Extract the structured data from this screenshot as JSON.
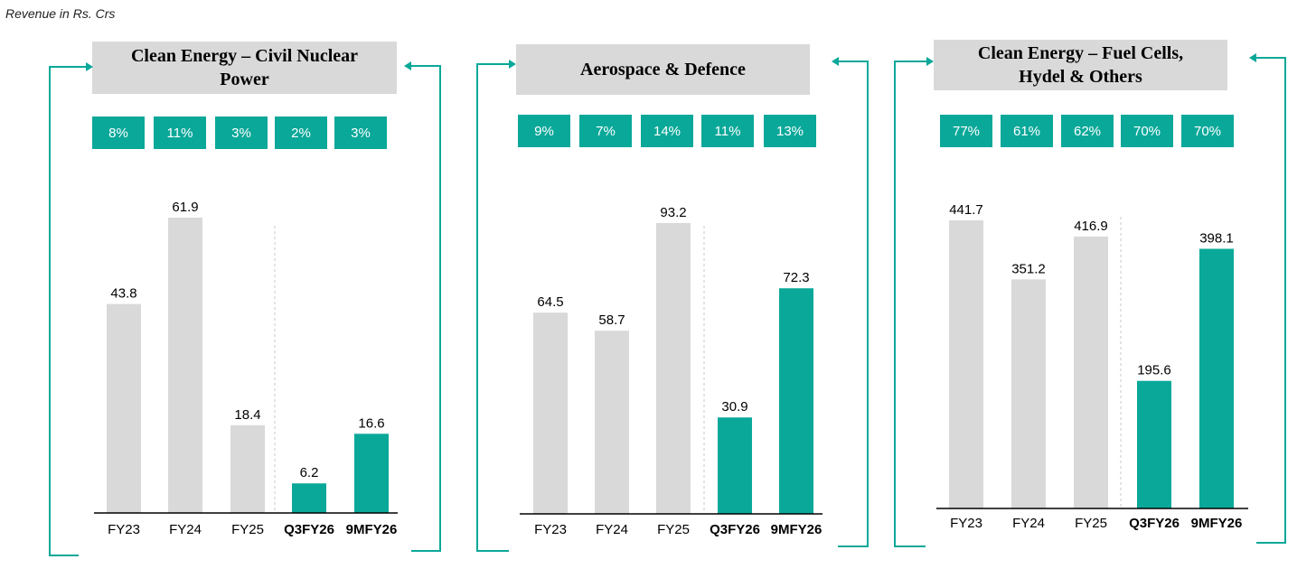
{
  "caption": "Revenue in Rs. Crs",
  "colors": {
    "accent": "#0aa899",
    "historic_bar": "#d9d9d9",
    "title_bg": "#d9d9d9",
    "axis": "#000000",
    "bracket": "#0aa899"
  },
  "chart_data": [
    {
      "type": "bar",
      "title": "Clean Energy – Civil Nuclear Power",
      "title_lines": [
        "Clean Energy – Civil Nuclear",
        "Power"
      ],
      "categories": [
        "FY23",
        "FY24",
        "FY25",
        "Q3FY26",
        "9MFY26"
      ],
      "values": [
        43.8,
        61.9,
        18.4,
        6.2,
        16.6
      ],
      "value_labels": [
        "43.8",
        "61.9",
        "18.4",
        "6.2",
        "16.6"
      ],
      "share_of_revenue": [
        "8%",
        "11%",
        "3%",
        "2%",
        "3%"
      ],
      "highlight": [
        false,
        false,
        false,
        true,
        true
      ],
      "ylim": [
        0,
        70
      ],
      "xlabel": "",
      "ylabel": ""
    },
    {
      "type": "bar",
      "title": "Aerospace & Defence",
      "title_lines": [
        "Aerospace & Defence"
      ],
      "categories": [
        "FY23",
        "FY24",
        "FY25",
        "Q3FY26",
        "9MFY26"
      ],
      "values": [
        64.5,
        58.7,
        93.2,
        30.9,
        72.3
      ],
      "value_labels": [
        "64.5",
        "58.7",
        "93.2",
        "30.9",
        "72.3"
      ],
      "share_of_revenue": [
        "9%",
        "7%",
        "14%",
        "11%",
        "13%"
      ],
      "highlight": [
        false,
        false,
        false,
        true,
        true
      ],
      "ylim": [
        0,
        100
      ],
      "xlabel": "",
      "ylabel": ""
    },
    {
      "type": "bar",
      "title": "Clean Energy – Fuel Cells, Hydel & Others",
      "title_lines": [
        "Clean Energy – Fuel Cells,",
        "Hydel & Others"
      ],
      "categories": [
        "FY23",
        "FY24",
        "FY25",
        "Q3FY26",
        "9MFY26"
      ],
      "values": [
        441.7,
        351.2,
        416.9,
        195.6,
        398.1
      ],
      "value_labels": [
        "441.7",
        "351.2",
        "416.9",
        "195.6",
        "398.1"
      ],
      "share_of_revenue": [
        "77%",
        "61%",
        "62%",
        "70%",
        "70%"
      ],
      "highlight": [
        false,
        false,
        false,
        true,
        true
      ],
      "ylim": [
        0,
        500
      ],
      "xlabel": "",
      "ylabel": ""
    }
  ]
}
